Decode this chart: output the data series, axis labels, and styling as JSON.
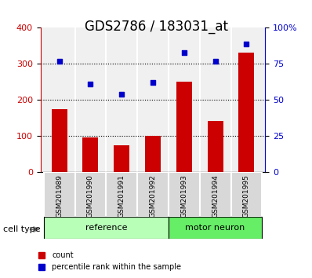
{
  "title": "GDS2786 / 183031_at",
  "categories": [
    "GSM201989",
    "GSM201990",
    "GSM201991",
    "GSM201992",
    "GSM201993",
    "GSM201994",
    "GSM201995"
  ],
  "bar_values": [
    175,
    97,
    75,
    102,
    250,
    143,
    332
  ],
  "scatter_values": [
    77,
    61,
    54,
    62,
    83,
    77,
    89
  ],
  "bar_color": "#cc0000",
  "scatter_color": "#0000cc",
  "left_ylim": [
    0,
    400
  ],
  "left_yticks": [
    0,
    100,
    200,
    300,
    400
  ],
  "right_ylim": [
    0,
    100
  ],
  "right_yticks": [
    0,
    25,
    50,
    75,
    100
  ],
  "right_yticklabels": [
    "0",
    "25",
    "50",
    "75",
    "100%"
  ],
  "grid_values": [
    100,
    200,
    300
  ],
  "group_labels": [
    "reference",
    "motor neuron"
  ],
  "group_ranges": [
    [
      0,
      3
    ],
    [
      4,
      6
    ]
  ],
  "group_colors": [
    "#aaffaa",
    "#55ee55"
  ],
  "cell_type_label": "cell type",
  "legend_count_label": "count",
  "legend_percentile_label": "percentile rank within the sample",
  "bar_width": 0.5,
  "bg_color_plot": "#f0f0f0",
  "bg_color_fig": "#ffffff",
  "title_fontsize": 12,
  "axis_label_fontsize": 9,
  "tick_fontsize": 8
}
